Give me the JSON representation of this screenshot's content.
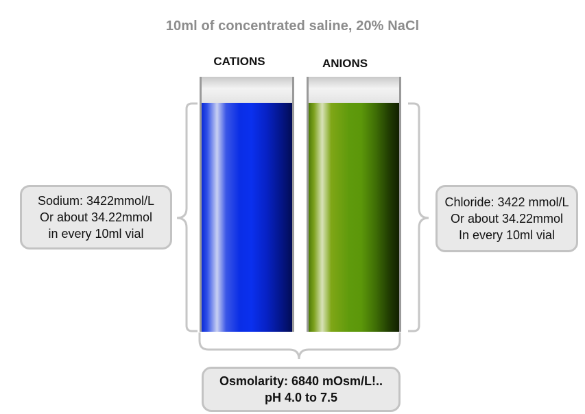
{
  "title": "10ml of concentrated saline, 20% NaCl",
  "labels": {
    "cations": "CATIONS",
    "anions": "ANIONS"
  },
  "vials": {
    "cation_color": "#0a2ee6",
    "anion_color": "#5c970a",
    "cap_color": "#e6e6e6"
  },
  "callouts": {
    "sodium": {
      "line1": "Sodium: 3422mmol/L",
      "line2": "Or about 34.22mmol",
      "line3": "in every 10ml vial"
    },
    "chloride": {
      "line1": "Chloride: 3422 mmol/L",
      "line2": "Or about 34.22mmol",
      "line3": "In every 10ml vial"
    },
    "osmolarity": {
      "line1": "Osmolarity: 6840 mOsm/L!..",
      "line2": "pH 4.0 to 7.5"
    }
  }
}
